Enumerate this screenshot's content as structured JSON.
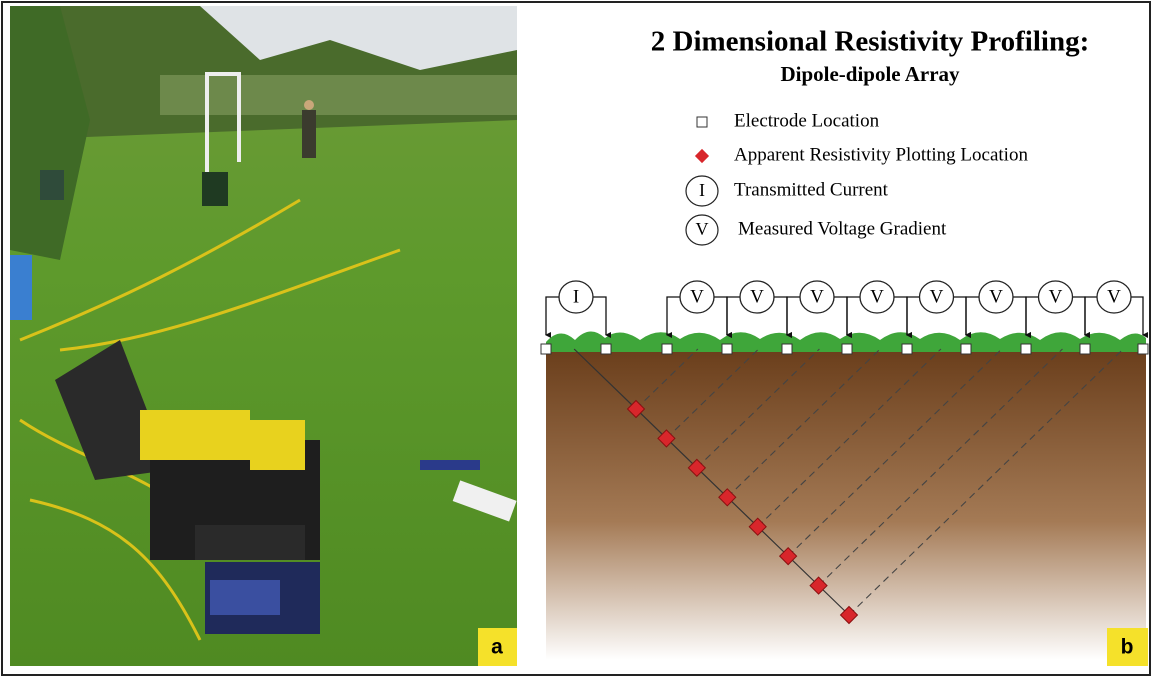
{
  "figure": {
    "title": "2 Dimensional Resistivity Profiling:",
    "subtitle": "Dipole-dipole Array",
    "legend": [
      {
        "label": "Electrode Location"
      },
      {
        "label": "Apparent Resistivity Plotting Location"
      },
      {
        "symbol": "I",
        "label": "Transmitted Current"
      },
      {
        "symbol": "V",
        "label": "Measured Voltage Gradient"
      }
    ],
    "current_label": "I",
    "voltage_labels": [
      "V",
      "V",
      "V",
      "V",
      "V",
      "V",
      "V",
      "V"
    ],
    "panels": [
      "a",
      "b"
    ]
  }
}
